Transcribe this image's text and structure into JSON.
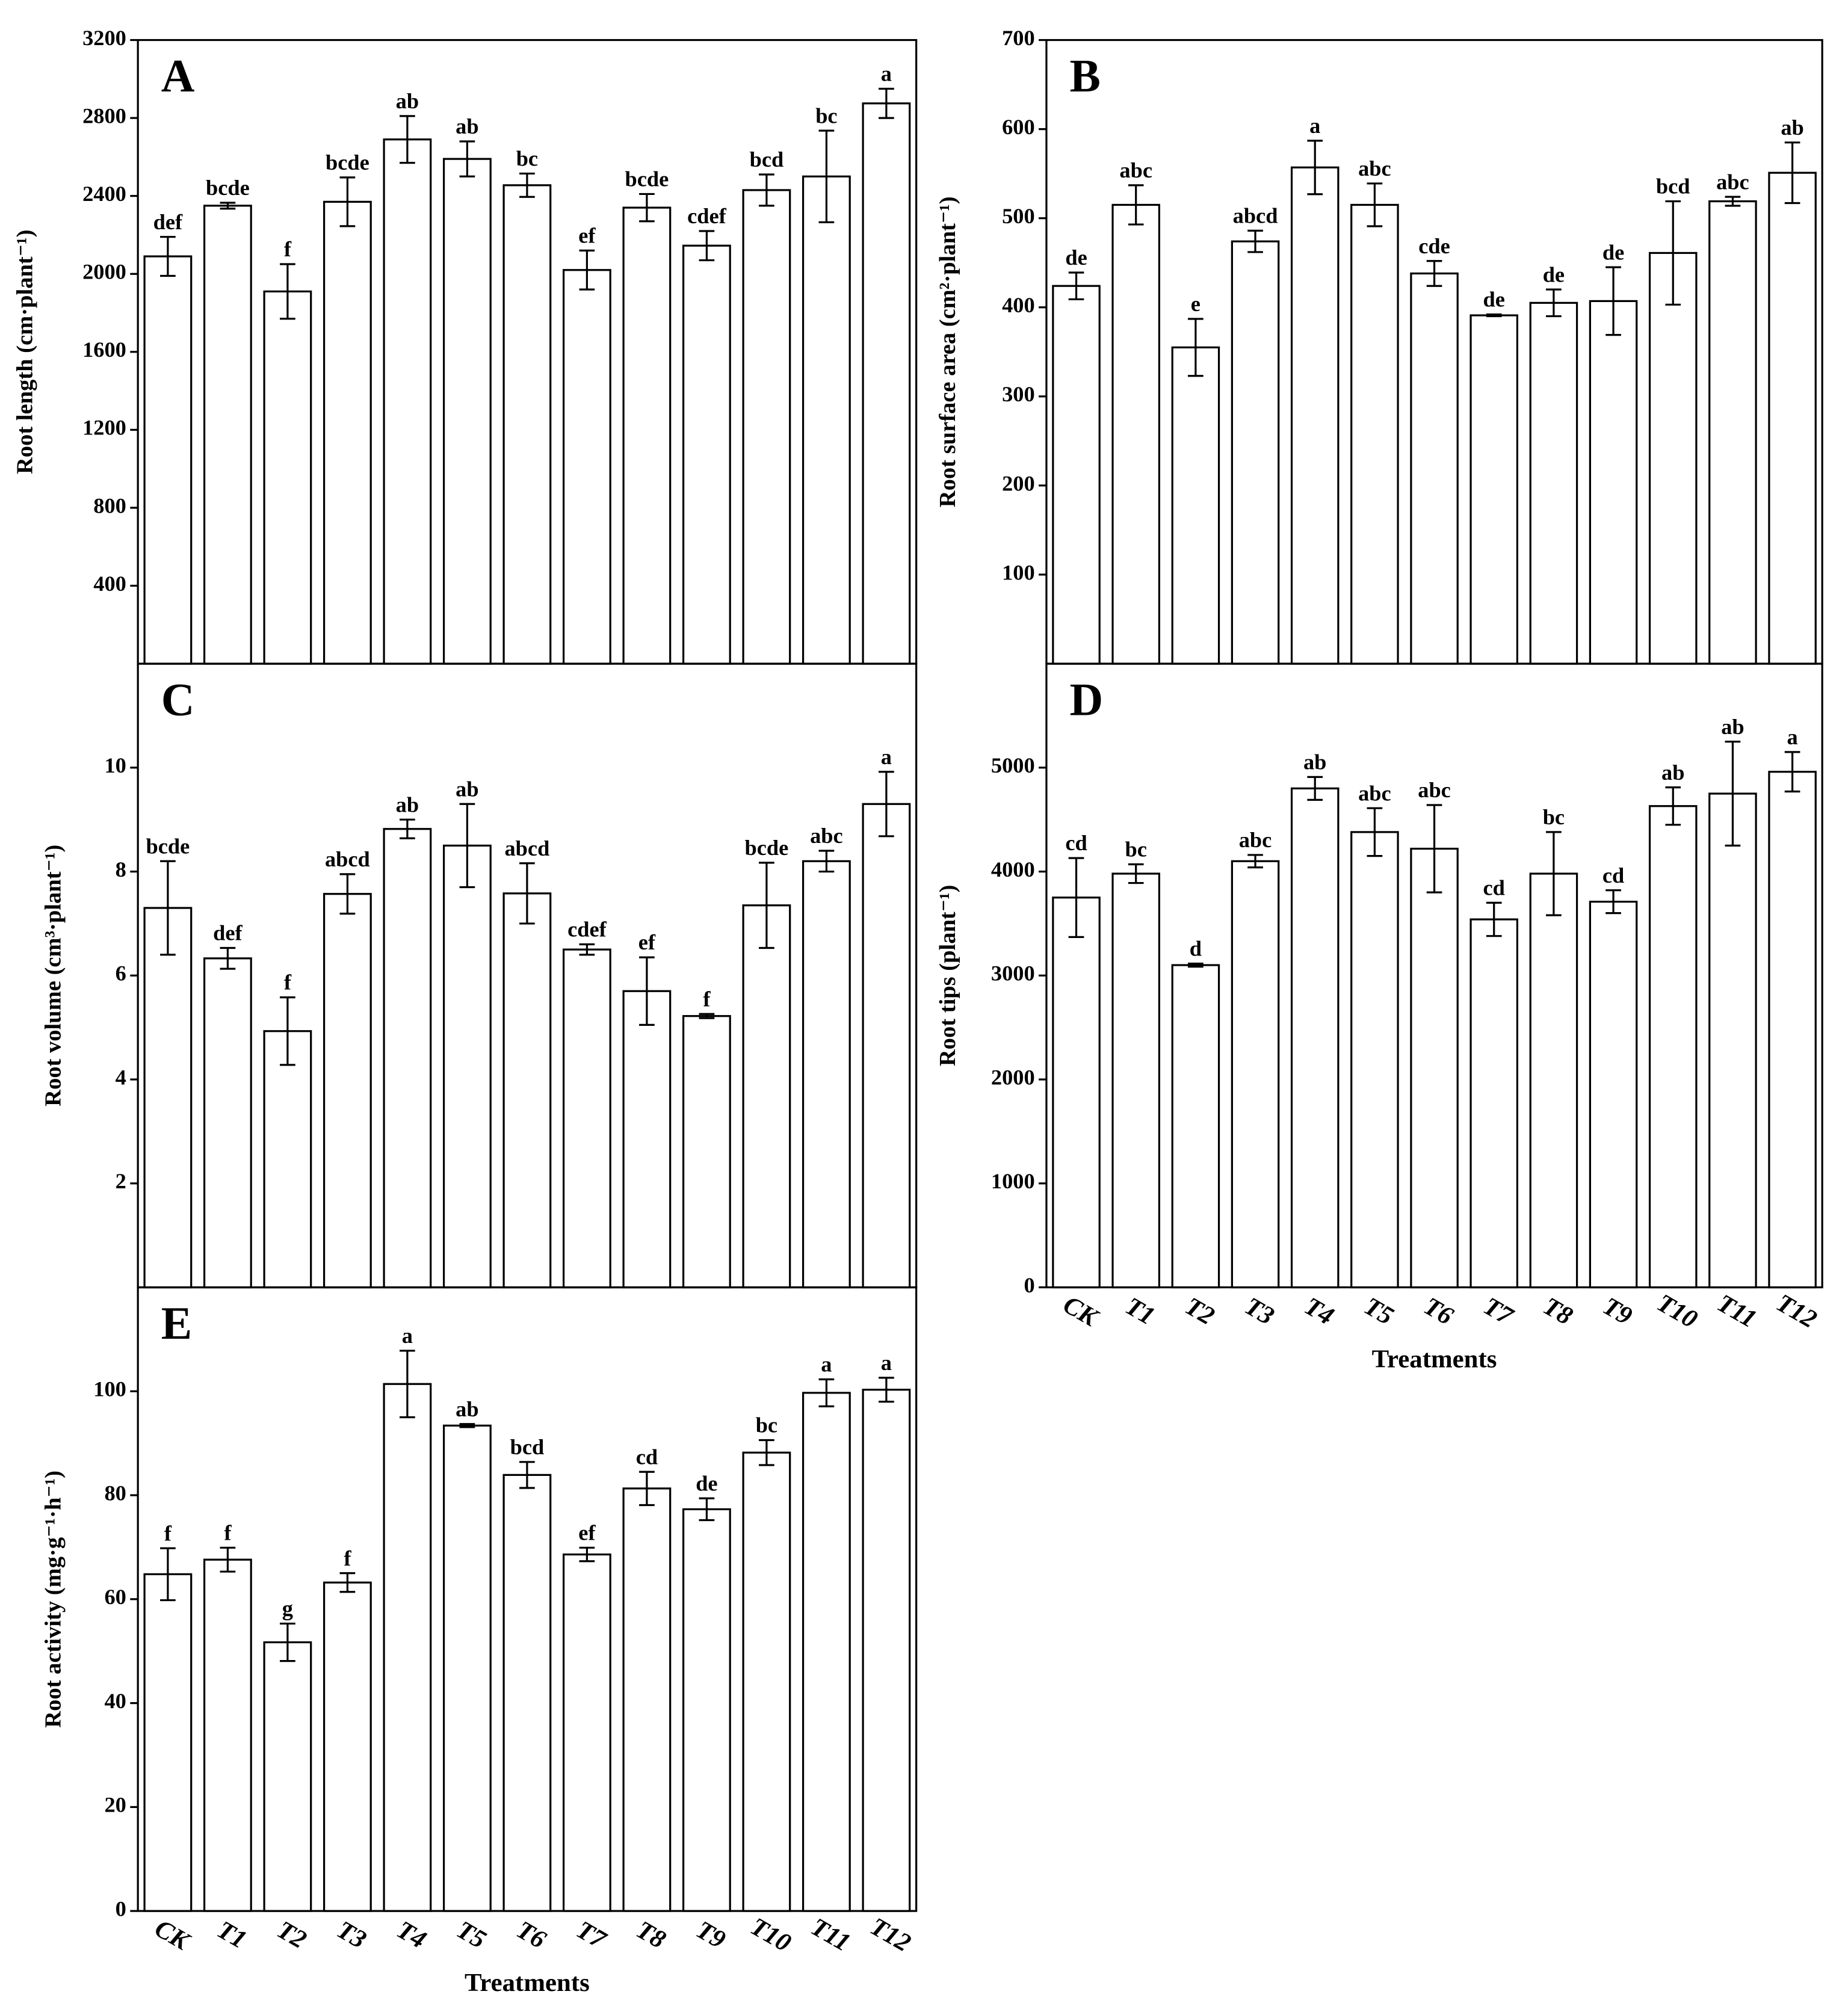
{
  "chart_data": [
    {
      "type": "bar",
      "panel": "A",
      "ylabel": "Root length (cm·plant⁻¹)",
      "ylim": [
        0,
        3200
      ],
      "yticks": [
        400,
        800,
        1200,
        1600,
        2000,
        2400,
        2800,
        3200
      ],
      "values": [
        2090,
        2350,
        1910,
        2370,
        2690,
        2590,
        2455,
        2020,
        2340,
        2145,
        2430,
        2500,
        2875
      ],
      "errors": [
        100,
        15,
        140,
        125,
        120,
        90,
        60,
        100,
        70,
        75,
        80,
        235,
        75
      ],
      "annotations": [
        "def",
        "bcde",
        "f",
        "bcde",
        "ab",
        "ab",
        "bc",
        "ef",
        "bcde",
        "cdef",
        "bcd",
        "bc",
        "a"
      ]
    },
    {
      "type": "bar",
      "panel": "B",
      "ylabel": "Root surface area (cm²·plant⁻¹)",
      "ylim": [
        0,
        700
      ],
      "yticks": [
        100,
        200,
        300,
        400,
        500,
        600,
        700
      ],
      "values": [
        424,
        515,
        355,
        474,
        557,
        515,
        438,
        391,
        405,
        407,
        461,
        519,
        551
      ],
      "errors": [
        15,
        22,
        32,
        12,
        30,
        24,
        14,
        1,
        15,
        38,
        58,
        5,
        34
      ],
      "annotations": [
        "de",
        "abc",
        "e",
        "abcd",
        "a",
        "abc",
        "cde",
        "de",
        "de",
        "de",
        "bcd",
        "abc",
        "ab"
      ]
    },
    {
      "type": "bar",
      "panel": "C",
      "ylabel": "Root volume (cm³·plant⁻¹)",
      "ylim": [
        0,
        12
      ],
      "yticks": [
        2,
        4,
        6,
        8,
        10
      ],
      "values": [
        7.3,
        6.33,
        4.93,
        7.57,
        8.82,
        8.5,
        7.58,
        6.5,
        5.7,
        5.22,
        7.35,
        8.2,
        9.3
      ],
      "errors": [
        0.9,
        0.2,
        0.65,
        0.38,
        0.18,
        0.8,
        0.58,
        0.1,
        0.65,
        0.04,
        0.82,
        0.2,
        0.62
      ],
      "annotations": [
        "bcde",
        "def",
        "f",
        "abcd",
        "ab",
        "ab",
        "abcd",
        "cdef",
        "ef",
        "f",
        "bcde",
        "abc",
        "a"
      ]
    },
    {
      "type": "bar",
      "panel": "D",
      "ylabel": "Root tips (plant⁻¹)",
      "xlabel": "Treatments",
      "categories": [
        "CK",
        "T1",
        "T2",
        "T3",
        "T4",
        "T5",
        "T6",
        "T7",
        "T8",
        "T9",
        "T10",
        "T11",
        "T12"
      ],
      "ylim": [
        0,
        6000
      ],
      "yticks": [
        0,
        1000,
        2000,
        3000,
        4000,
        5000
      ],
      "values": [
        3750,
        3980,
        3100,
        4100,
        4800,
        4380,
        4220,
        3540,
        3980,
        3710,
        4630,
        4750,
        4960
      ],
      "errors": [
        380,
        90,
        15,
        60,
        110,
        230,
        420,
        160,
        400,
        110,
        180,
        500,
        190
      ],
      "annotations": [
        "cd",
        "bc",
        "d",
        "abc",
        "ab",
        "abc",
        "abc",
        "cd",
        "bc",
        "cd",
        "ab",
        "ab",
        "a"
      ]
    },
    {
      "type": "bar",
      "panel": "E",
      "ylabel": "Root activity (mg·g⁻¹·h⁻¹)",
      "xlabel": "Treatments",
      "categories": [
        "CK",
        "T1",
        "T2",
        "T3",
        "T4",
        "T5",
        "T6",
        "T7",
        "T8",
        "T9",
        "T10",
        "T11",
        "T12"
      ],
      "ylim": [
        0,
        120
      ],
      "yticks": [
        0,
        20,
        40,
        60,
        80,
        100
      ],
      "values": [
        64.8,
        67.6,
        51.7,
        63.2,
        101.4,
        93.4,
        83.9,
        68.6,
        81.3,
        77.3,
        88.2,
        99.7,
        100.3
      ],
      "errors": [
        5,
        2.3,
        3.6,
        1.8,
        6.4,
        0.3,
        2.5,
        1.3,
        3.2,
        2.1,
        2.4,
        2.6,
        2.3
      ],
      "annotations": [
        "f",
        "f",
        "g",
        "f",
        "a",
        "ab",
        "bcd",
        "ef",
        "cd",
        "de",
        "bc",
        "a",
        "a"
      ]
    }
  ]
}
